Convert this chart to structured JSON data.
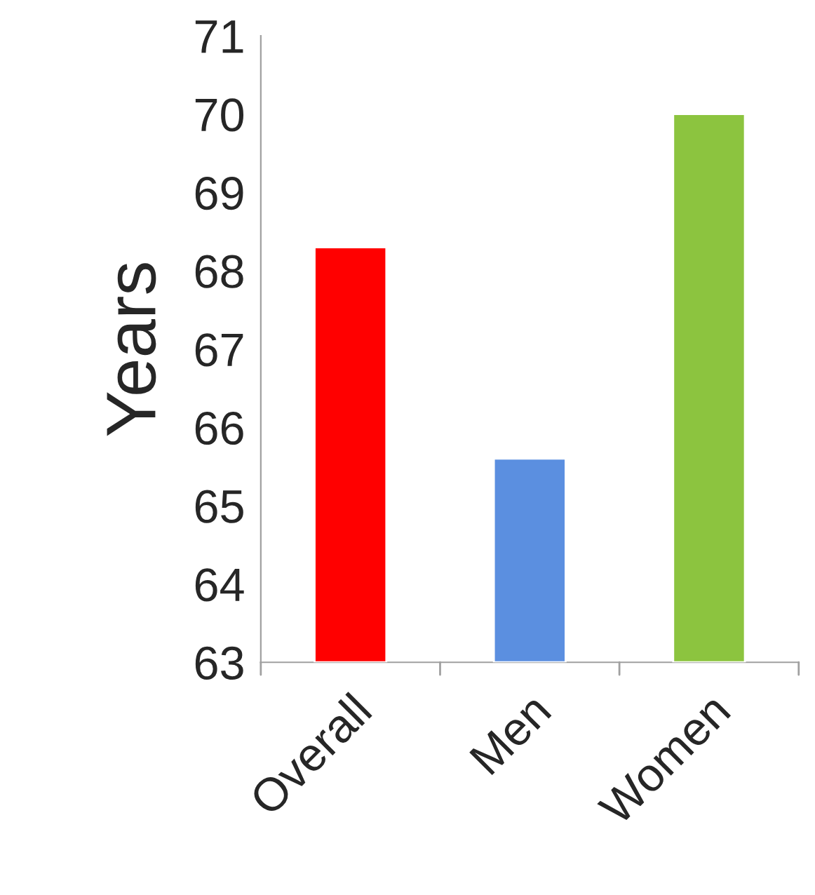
{
  "chart_data": {
    "type": "bar",
    "ylabel": "Years",
    "categories": [
      "Overall",
      "Men",
      "Women"
    ],
    "values": [
      68.3,
      65.6,
      70.0
    ],
    "colors": [
      "#ff0000",
      "#5b8fe0",
      "#8cc43f"
    ],
    "ylim": [
      63,
      71
    ],
    "yticks": [
      63,
      64,
      65,
      66,
      67,
      68,
      69,
      70,
      71
    ],
    "grid": false,
    "legend": false
  }
}
